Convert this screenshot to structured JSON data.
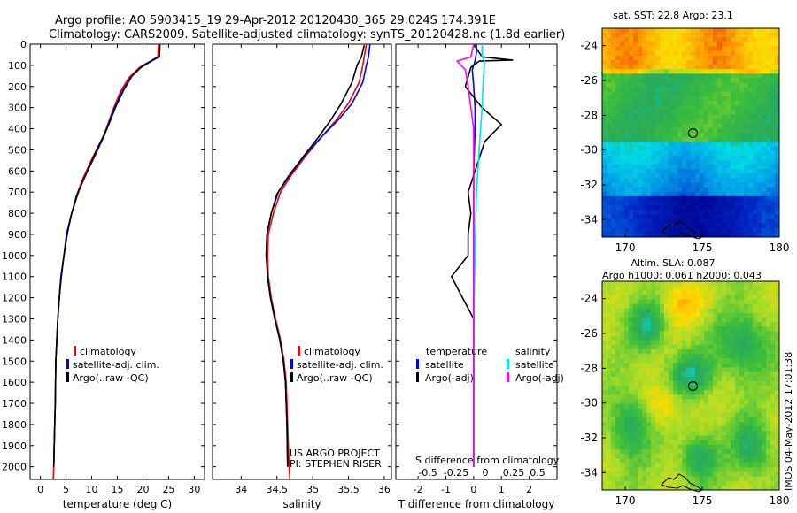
{
  "header": {
    "line1": "Argo profile: AO 5903415_19 29-Apr-2012 20120430_365 29.024S 174.391E",
    "line2": "Climatology: CARS2009. Satellite-adjusted climatology: synTS_20120428.nc (1.8d earlier)"
  },
  "side_stamp": "IMOS 04-May-2012 17:01:38",
  "colors": {
    "climatology": "#ff0000",
    "satellite": "#0000ff",
    "argo": "#000000",
    "sal_satellite": "#00e5ee",
    "sal_argo": "#ff00ff"
  },
  "chart_data": [
    {
      "id": "temperature",
      "type": "line",
      "xlabel": "temperature (deg C)",
      "ylabel": "",
      "xlim": [
        -2,
        32
      ],
      "ylim": [
        2060,
        0
      ],
      "xticks": [
        0,
        5,
        10,
        15,
        20,
        25,
        30
      ],
      "yticks": [
        0,
        100,
        200,
        300,
        400,
        500,
        600,
        700,
        800,
        900,
        1000,
        1100,
        1200,
        1300,
        1400,
        1500,
        1600,
        1700,
        1800,
        1900,
        2000
      ],
      "series": [
        {
          "name": "climatology",
          "color": "#ff0000",
          "points": [
            [
              23.0,
              0
            ],
            [
              22.9,
              60
            ],
            [
              21.5,
              80
            ],
            [
              19.3,
              110
            ],
            [
              17.2,
              160
            ],
            [
              15.5,
              230
            ],
            [
              14.0,
              320
            ],
            [
              12.4,
              430
            ],
            [
              10.3,
              530
            ],
            [
              8.2,
              640
            ],
            [
              7.0,
              720
            ],
            [
              5.9,
              820
            ],
            [
              5.1,
              900
            ],
            [
              4.6,
              1000
            ],
            [
              4.0,
              1100
            ],
            [
              3.7,
              1200
            ],
            [
              3.4,
              1300
            ],
            [
              3.2,
              1400
            ],
            [
              3.0,
              1500
            ],
            [
              2.9,
              1700
            ],
            [
              2.7,
              1900
            ],
            [
              2.6,
              2000
            ],
            [
              2.5,
              2060
            ]
          ]
        },
        {
          "name": "satellite-adj. clim.",
          "color": "#0000ff",
          "points": [
            [
              23.3,
              0
            ],
            [
              23.2,
              60
            ],
            [
              22.0,
              75
            ],
            [
              19.6,
              110
            ],
            [
              17.5,
              160
            ],
            [
              15.8,
              230
            ],
            [
              14.1,
              320
            ],
            [
              12.5,
              430
            ],
            [
              10.6,
              530
            ],
            [
              8.4,
              640
            ],
            [
              7.0,
              720
            ],
            [
              5.9,
              820
            ],
            [
              5.1,
              900
            ],
            [
              4.6,
              1000
            ],
            [
              4.0,
              1100
            ],
            [
              3.7,
              1200
            ],
            [
              3.4,
              1300
            ],
            [
              3.2,
              1400
            ],
            [
              3.0,
              1500
            ],
            [
              2.9,
              1700
            ],
            [
              2.7,
              1900
            ],
            [
              2.6,
              2000
            ]
          ]
        },
        {
          "name": "Argo(..raw -QC)",
          "color": "#000000",
          "points": [
            [
              23.3,
              5
            ],
            [
              23.2,
              55
            ],
            [
              22.3,
              70
            ],
            [
              20.0,
              100
            ],
            [
              18.0,
              145
            ],
            [
              16.4,
              210
            ],
            [
              14.8,
              290
            ],
            [
              13.0,
              400
            ],
            [
              11.0,
              500
            ],
            [
              8.8,
              620
            ],
            [
              7.4,
              700
            ],
            [
              6.1,
              800
            ],
            [
              5.3,
              890
            ],
            [
              4.6,
              1000
            ],
            [
              4.1,
              1100
            ],
            [
              3.7,
              1200
            ],
            [
              3.4,
              1300
            ],
            [
              3.2,
              1400
            ],
            [
              3.0,
              1500
            ],
            [
              2.9,
              1700
            ],
            [
              2.7,
              1900
            ],
            [
              2.6,
              2000
            ]
          ]
        }
      ]
    },
    {
      "id": "salinity",
      "type": "line",
      "xlabel": "salinity",
      "ylabel": "",
      "xlim": [
        33.6,
        36.1
      ],
      "ylim": [
        2060,
        0
      ],
      "xticks": [
        34,
        34.5,
        35,
        35.5,
        36
      ],
      "series": [
        {
          "name": "climatology",
          "color": "#ff0000",
          "points": [
            [
              35.75,
              0
            ],
            [
              35.72,
              60
            ],
            [
              35.7,
              100
            ],
            [
              35.65,
              180
            ],
            [
              35.5,
              280
            ],
            [
              35.35,
              350
            ],
            [
              35.12,
              440
            ],
            [
              34.9,
              530
            ],
            [
              34.7,
              620
            ],
            [
              34.55,
              700
            ],
            [
              34.45,
              800
            ],
            [
              34.38,
              900
            ],
            [
              34.37,
              1000
            ],
            [
              34.38,
              1100
            ],
            [
              34.42,
              1200
            ],
            [
              34.48,
              1300
            ],
            [
              34.55,
              1400
            ],
            [
              34.6,
              1500
            ],
            [
              34.63,
              1600
            ],
            [
              34.65,
              1800
            ],
            [
              34.67,
              2000
            ],
            [
              34.68,
              2060
            ]
          ]
        },
        {
          "name": "satellite-adj. clim.",
          "color": "#0000ff",
          "points": [
            [
              35.8,
              0
            ],
            [
              35.78,
              60
            ],
            [
              35.75,
              100
            ],
            [
              35.7,
              180
            ],
            [
              35.55,
              280
            ],
            [
              35.38,
              350
            ],
            [
              35.12,
              440
            ],
            [
              34.88,
              530
            ],
            [
              34.68,
              620
            ],
            [
              34.52,
              700
            ],
            [
              34.42,
              800
            ],
            [
              34.36,
              900
            ],
            [
              34.35,
              1000
            ],
            [
              34.37,
              1100
            ],
            [
              34.41,
              1200
            ],
            [
              34.47,
              1300
            ],
            [
              34.54,
              1400
            ],
            [
              34.59,
              1500
            ],
            [
              34.62,
              1600
            ],
            [
              34.64,
              1800
            ],
            [
              34.65,
              2000
            ]
          ]
        },
        {
          "name": "Argo(..raw -QC)",
          "color": "#000000",
          "points": [
            [
              35.72,
              5
            ],
            [
              35.68,
              60
            ],
            [
              35.62,
              100
            ],
            [
              35.55,
              180
            ],
            [
              35.4,
              280
            ],
            [
              35.25,
              360
            ],
            [
              35.08,
              440
            ],
            [
              34.85,
              540
            ],
            [
              34.65,
              630
            ],
            [
              34.5,
              710
            ],
            [
              34.42,
              800
            ],
            [
              34.36,
              900
            ],
            [
              34.35,
              1000
            ],
            [
              34.37,
              1100
            ],
            [
              34.41,
              1200
            ],
            [
              34.47,
              1300
            ],
            [
              34.54,
              1400
            ],
            [
              34.59,
              1500
            ],
            [
              34.62,
              1600
            ],
            [
              34.64,
              1800
            ],
            [
              34.65,
              2000
            ]
          ]
        }
      ],
      "annotations": [
        "US ARGO PROJECT",
        "PI: STEPHEN RISER"
      ]
    },
    {
      "id": "difference",
      "type": "line",
      "xlabel": "T difference from climatology",
      "x2label": "S difference from climatology",
      "xlim": [
        -2.8,
        3.0
      ],
      "ylim": [
        2060,
        0
      ],
      "xticks": [
        -2,
        -1,
        0,
        1,
        2
      ],
      "x2ticks": [
        "-0.5",
        "-0.25",
        "0",
        "0.25",
        "0.5"
      ],
      "legend_groups": [
        "temperature",
        "salinity"
      ],
      "series": [
        {
          "name": "satellite",
          "group": "temperature",
          "color": "#0000ff",
          "points": [
            [
              0.1,
              0
            ],
            [
              0.1,
              40
            ],
            [
              0.05,
              80
            ],
            [
              -0.05,
              120
            ],
            [
              0.0,
              200
            ],
            [
              0.05,
              300
            ],
            [
              0.05,
              400
            ],
            [
              0.0,
              600
            ],
            [
              0.0,
              800
            ],
            [
              0.0,
              1000
            ],
            [
              0.0,
              1500
            ],
            [
              0.0,
              2000
            ]
          ]
        },
        {
          "name": "Argo(-adj)",
          "group": "temperature",
          "color": "#000000",
          "points": [
            [
              0.0,
              0
            ],
            [
              0.3,
              60
            ],
            [
              1.4,
              75
            ],
            [
              0.2,
              80
            ],
            [
              -0.1,
              110
            ],
            [
              -0.3,
              200
            ],
            [
              0.3,
              300
            ],
            [
              1.0,
              380
            ],
            [
              0.4,
              460
            ],
            [
              0.2,
              540
            ],
            [
              0.0,
              620
            ],
            [
              -0.2,
              700
            ],
            [
              -0.1,
              800
            ],
            [
              -0.2,
              900
            ],
            [
              -0.2,
              1000
            ],
            [
              -0.8,
              1100
            ],
            [
              -0.4,
              1200
            ],
            [
              0.0,
              1300
            ],
            [
              0.0,
              1500
            ],
            [
              0.0,
              2000
            ]
          ]
        },
        {
          "name": "satellite",
          "group": "salinity",
          "color": "#00e5ee",
          "points": [
            [
              0.3,
              0
            ],
            [
              0.3,
              60
            ],
            [
              0.4,
              80
            ],
            [
              0.35,
              150
            ],
            [
              0.3,
              300
            ],
            [
              0.2,
              500
            ],
            [
              0.1,
              700
            ],
            [
              0.05,
              1000
            ],
            [
              0.0,
              1300
            ],
            [
              0.0,
              2000
            ]
          ]
        },
        {
          "name": "Argo(-adj)",
          "group": "salinity",
          "color": "#ff00ff",
          "points": [
            [
              0.0,
              0
            ],
            [
              -0.1,
              60
            ],
            [
              -0.6,
              80
            ],
            [
              -0.3,
              120
            ],
            [
              -0.2,
              200
            ],
            [
              -0.1,
              300
            ],
            [
              0.0,
              400
            ],
            [
              0.0,
              600
            ],
            [
              0.0,
              800
            ],
            [
              0.0,
              1000
            ],
            [
              0.0,
              1300
            ],
            [
              0.0,
              2000
            ]
          ]
        }
      ]
    },
    {
      "id": "sst-map",
      "type": "heatmap",
      "title": "sat. SST: 22.8  Argo: 23.1",
      "xlim": [
        168.5,
        180
      ],
      "ylim": [
        -35,
        -23
      ],
      "xticks": [
        170,
        175,
        180
      ],
      "yticks": [
        -24,
        -26,
        -28,
        -30,
        -32,
        -34
      ],
      "marker": [
        174.391,
        -29.024
      ]
    },
    {
      "id": "sla-map",
      "type": "heatmap",
      "title": "Altim. SLA: 0.087",
      "subtitle": "Argo h1000: 0.061 h2000: 0.043",
      "xlim": [
        168.5,
        180
      ],
      "ylim": [
        -35,
        -23
      ],
      "xticks": [
        170,
        175,
        180
      ],
      "yticks": [
        -24,
        -26,
        -28,
        -30,
        -32,
        -34
      ],
      "marker": [
        174.391,
        -29.024
      ]
    }
  ]
}
